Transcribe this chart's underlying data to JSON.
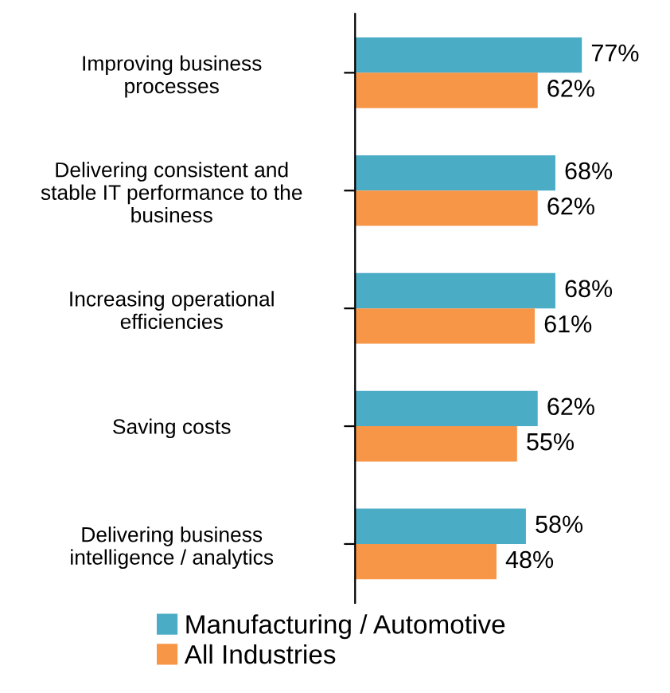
{
  "chart_data": {
    "type": "bar",
    "orientation": "horizontal",
    "categories": [
      "Improving business\nprocesses",
      "Delivering consistent and\nstable IT performance to the\nbusiness",
      "Increasing operational\nefficiencies",
      "Saving costs",
      "Delivering business\nintelligence / analytics"
    ],
    "series": [
      {
        "name": "Manufacturing / Automotive",
        "color": "#4bacc6",
        "values": [
          77,
          68,
          68,
          62,
          58
        ],
        "value_labels": [
          "77%",
          "68%",
          "68%",
          "62%",
          "58%"
        ]
      },
      {
        "name": "All Industries",
        "color": "#f79646",
        "values": [
          62,
          62,
          61,
          55,
          48
        ],
        "value_labels": [
          "62%",
          "62%",
          "61%",
          "55%",
          "48%"
        ]
      }
    ],
    "legend": "bottom",
    "grid": false
  }
}
